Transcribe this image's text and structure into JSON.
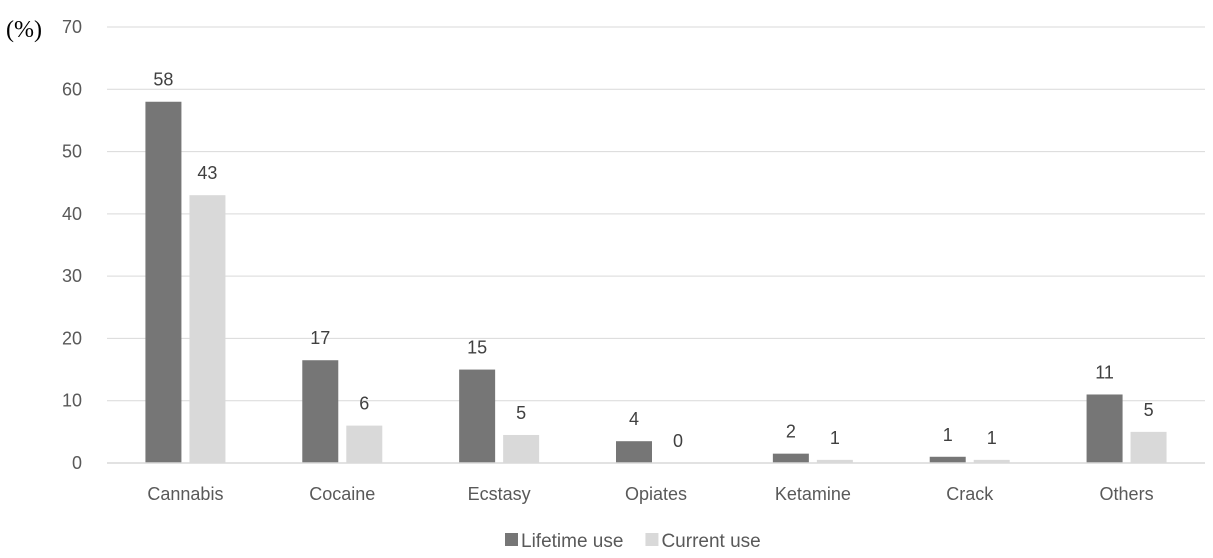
{
  "chart_data": {
    "type": "bar",
    "y_unit_label": "(%)",
    "categories": [
      "Cannabis",
      "Cocaine",
      "Ecstasy",
      "Opiates",
      "Ketamine",
      "Crack",
      "Others"
    ],
    "series": [
      {
        "name": "Lifetime use",
        "color": "#767676",
        "values": [
          58,
          16.5,
          15,
          3.5,
          1.5,
          1,
          11
        ],
        "data_labels": [
          "58",
          "17",
          "15",
          "4",
          "2",
          "1",
          "11"
        ]
      },
      {
        "name": "Current use",
        "color": "#d9d9d9",
        "values": [
          43,
          6,
          4.5,
          0,
          0.5,
          0.5,
          5
        ],
        "data_labels": [
          "43",
          "6",
          "5",
          "0",
          "1",
          "1",
          "5"
        ]
      }
    ],
    "ylim": [
      0,
      70
    ],
    "y_ticks": [
      0,
      10,
      20,
      30,
      40,
      50,
      60,
      70
    ],
    "grid": true,
    "legend_position": "bottom"
  }
}
